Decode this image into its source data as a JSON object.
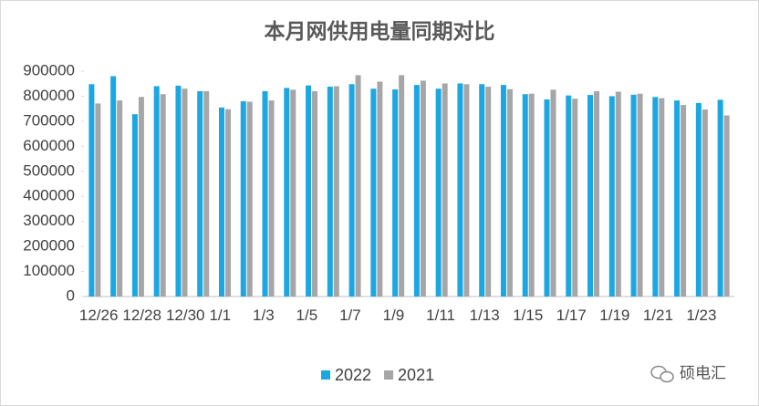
{
  "chart_data": {
    "type": "bar",
    "title": "本月网供用电量同期对比",
    "categories": [
      "12/26",
      null,
      "12/28",
      null,
      "12/30",
      null,
      "1/1",
      null,
      "1/3",
      null,
      "1/5",
      null,
      "1/7",
      null,
      "1/9",
      null,
      "1/11",
      null,
      "1/13",
      null,
      "1/15",
      null,
      "1/17",
      null,
      "1/19",
      null,
      "1/21",
      null,
      "1/23",
      null
    ],
    "series": [
      {
        "name": "2022",
        "color": "#1ba7e1",
        "values": [
          848000,
          880000,
          728000,
          840000,
          842000,
          820000,
          755000,
          780000,
          820000,
          833000,
          843000,
          838000,
          848000,
          830000,
          827000,
          845000,
          830000,
          851000,
          848000,
          845000,
          808000,
          787000,
          803000,
          805000,
          800000,
          806000,
          797000,
          783000,
          773000,
          786000
        ]
      },
      {
        "name": "2021",
        "color": "#a6a6a6",
        "values": [
          771000,
          783000,
          797000,
          808000,
          830000,
          820000,
          748000,
          778000,
          783000,
          826000,
          820000,
          840000,
          884000,
          858000,
          884000,
          862000,
          851000,
          848000,
          838000,
          828000,
          810000,
          826000,
          790000,
          820000,
          818000,
          810000,
          792000,
          765000,
          747000,
          723000
        ]
      }
    ],
    "ylim": [
      0,
      900000
    ],
    "yticks": [
      0,
      100000,
      200000,
      300000,
      400000,
      500000,
      600000,
      700000,
      800000,
      900000
    ],
    "legend": "bottom"
  },
  "watermark": "硕电汇"
}
